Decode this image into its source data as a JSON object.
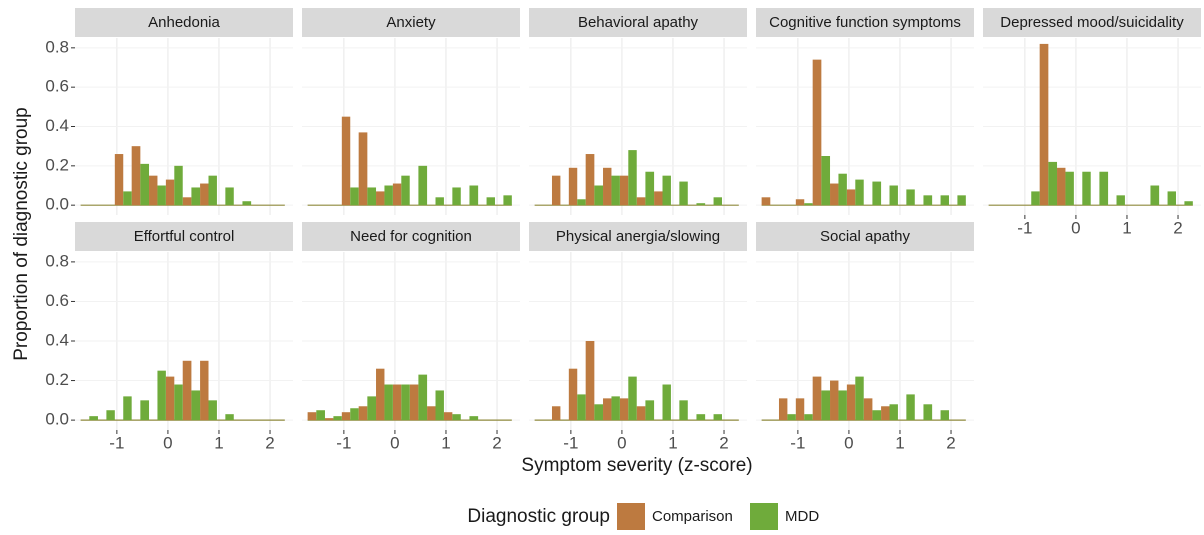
{
  "chart_data": {
    "type": "histogram",
    "xlabel": "Symptom severity (z-score)",
    "ylabel": "Proportion of diagnostic group",
    "legend_title": "Diagnostic group",
    "series": [
      {
        "name": "Comparison",
        "color": "#bd7a40"
      },
      {
        "name": "MDD",
        "color": "#6fab3b"
      }
    ],
    "bins": [
      -1.71,
      -1.37,
      -1.04,
      -0.71,
      -0.37,
      -0.04,
      0.29,
      0.63,
      0.96,
      1.29,
      1.63,
      1.96,
      2.29
    ],
    "xlim": [
      -1.82,
      2.45
    ],
    "ylim": [
      -0.05,
      0.85
    ],
    "xticks": [
      -1,
      0,
      1,
      2
    ],
    "yticks": [
      {
        "value": 0,
        "label": "0.0"
      },
      {
        "value": 0.2,
        "label": "0.2"
      },
      {
        "value": 0.4,
        "label": "0.4"
      },
      {
        "value": 0.6,
        "label": "0.6"
      },
      {
        "value": 0.8,
        "label": "0.8"
      }
    ],
    "grid": true,
    "facets": [
      {
        "title": "Anhedonia",
        "values": [
          [
            0,
            0,
            0.26,
            0.3,
            0.15,
            0.13,
            0.04,
            0.11,
            0,
            0,
            0,
            0
          ],
          [
            0,
            0,
            0.07,
            0.21,
            0.1,
            0.2,
            0.09,
            0.15,
            0.09,
            0.02,
            0,
            0
          ]
        ]
      },
      {
        "title": "Anxiety",
        "values": [
          [
            0,
            0,
            0.45,
            0.37,
            0.07,
            0.11,
            0,
            0,
            0,
            0,
            0,
            0
          ],
          [
            0,
            0,
            0.09,
            0.09,
            0.1,
            0.15,
            0.2,
            0.04,
            0.09,
            0.1,
            0.04,
            0.05
          ]
        ]
      },
      {
        "title": "Behavioral apathy",
        "values": [
          [
            0,
            0.15,
            0.19,
            0.26,
            0.19,
            0.15,
            0.04,
            0.07,
            0,
            0,
            0,
            0
          ],
          [
            0,
            0,
            0.03,
            0.1,
            0.15,
            0.28,
            0.17,
            0.15,
            0.12,
            0.01,
            0.04,
            0
          ]
        ]
      },
      {
        "title": "Cognitive function symptoms",
        "values": [
          [
            0.04,
            0,
            0.03,
            0.74,
            0.11,
            0.08,
            0,
            0,
            0,
            0,
            0,
            0
          ],
          [
            0,
            0,
            0.01,
            0.25,
            0.16,
            0.13,
            0.12,
            0.1,
            0.08,
            0.05,
            0.05,
            0.05
          ]
        ]
      },
      {
        "title": "Depressed mood/suicidality",
        "values": [
          [
            0,
            0,
            0,
            0.82,
            0.19,
            0,
            0,
            0,
            0,
            0,
            0,
            0
          ],
          [
            0,
            0,
            0.07,
            0.22,
            0.17,
            0.17,
            0.17,
            0.05,
            0,
            0.1,
            0.07,
            0.02
          ]
        ]
      },
      {
        "title": "Effortful control",
        "values": [
          [
            0,
            0,
            0,
            0,
            0,
            0.22,
            0.3,
            0.3,
            0,
            0,
            0,
            0
          ],
          [
            0.02,
            0.05,
            0.12,
            0.1,
            0.25,
            0.18,
            0.15,
            0.1,
            0.03,
            0,
            0,
            0
          ]
        ]
      },
      {
        "title": "Need for cognition",
        "values": [
          [
            0.04,
            0.01,
            0.04,
            0.07,
            0.26,
            0.18,
            0.18,
            0.07,
            0.04,
            0,
            0,
            0
          ],
          [
            0.05,
            0.02,
            0.06,
            0.12,
            0.18,
            0.18,
            0.23,
            0.15,
            0.03,
            0.02,
            0,
            0
          ]
        ]
      },
      {
        "title": "Physical anergia/slowing",
        "values": [
          [
            0,
            0.07,
            0.26,
            0.4,
            0.11,
            0.11,
            0.07,
            0,
            0,
            0,
            0,
            0
          ],
          [
            0,
            0,
            0.13,
            0.08,
            0.12,
            0.22,
            0.1,
            0.18,
            0.1,
            0.03,
            0.03,
            0
          ]
        ]
      },
      {
        "title": "Social apathy",
        "values": [
          [
            0,
            0.11,
            0.11,
            0.22,
            0.2,
            0.18,
            0.11,
            0.07,
            0,
            0,
            0,
            0
          ],
          [
            0,
            0.03,
            0.03,
            0.15,
            0.15,
            0.22,
            0.05,
            0.08,
            0.13,
            0.08,
            0.05,
            0
          ]
        ]
      }
    ]
  }
}
